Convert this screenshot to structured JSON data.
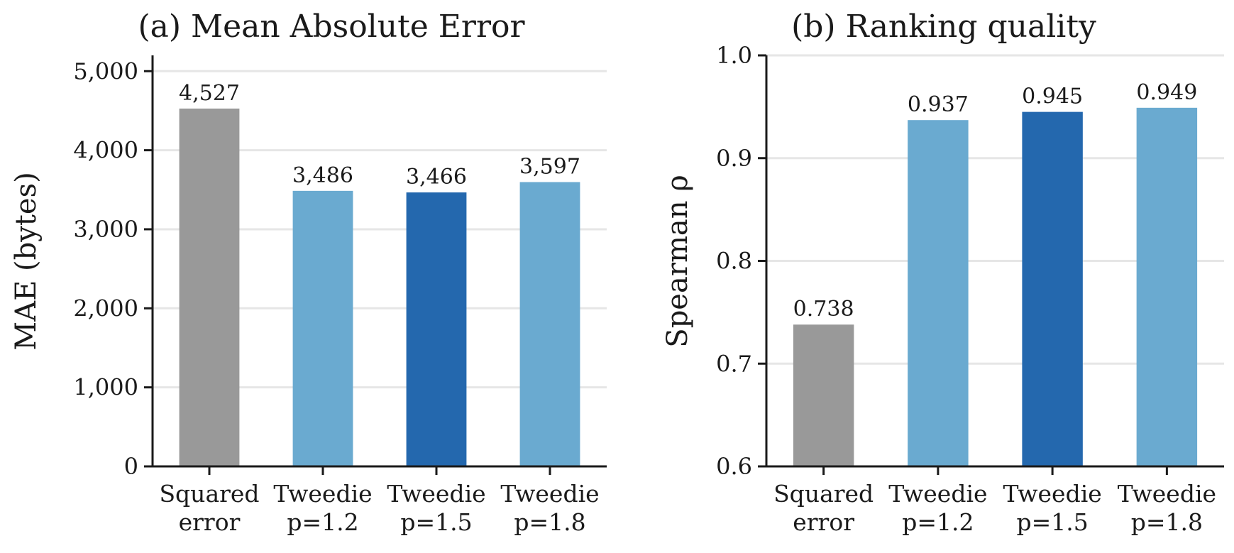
{
  "colors": {
    "baseline": "#999999",
    "tweedie_light": "#6aaad0",
    "tweedie_best": "#2468ae"
  },
  "chart_data": [
    {
      "type": "bar",
      "title": "(a) Mean Absolute Error",
      "xlabel": "",
      "ylabel": "MAE (bytes)",
      "categories": [
        [
          "Squared",
          "error"
        ],
        [
          "Tweedie",
          "p=1.2"
        ],
        [
          "Tweedie",
          "p=1.5"
        ],
        [
          "Tweedie",
          "p=1.8"
        ]
      ],
      "values": [
        4527,
        3486,
        3466,
        3597
      ],
      "value_labels": [
        "4,527",
        "3,486",
        "3,466",
        "3,597"
      ],
      "bar_colors": [
        "baseline",
        "tweedie_light",
        "tweedie_best",
        "tweedie_light"
      ],
      "ylim": [
        0,
        5200
      ],
      "yticks": [
        0,
        1000,
        2000,
        3000,
        4000,
        5000
      ],
      "ytick_labels": [
        "0",
        "1,000",
        "2,000",
        "3,000",
        "4,000",
        "5,000"
      ],
      "grid": "horizontal"
    },
    {
      "type": "bar",
      "title": "(b) Ranking quality",
      "xlabel": "",
      "ylabel": "Spearman ρ",
      "categories": [
        [
          "Squared",
          "error"
        ],
        [
          "Tweedie",
          "p=1.2"
        ],
        [
          "Tweedie",
          "p=1.5"
        ],
        [
          "Tweedie",
          "p=1.8"
        ]
      ],
      "values": [
        0.738,
        0.937,
        0.945,
        0.949
      ],
      "value_labels": [
        "0.738",
        "0.937",
        "0.945",
        "0.949"
      ],
      "bar_colors": [
        "baseline",
        "tweedie_light",
        "tweedie_best",
        "tweedie_light"
      ],
      "ylim": [
        0.6,
        1.0
      ],
      "yticks": [
        0.6,
        0.7,
        0.8,
        0.9,
        1.0
      ],
      "ytick_labels": [
        "0.6",
        "0.7",
        "0.8",
        "0.9",
        "1.0"
      ],
      "grid": "horizontal"
    }
  ]
}
